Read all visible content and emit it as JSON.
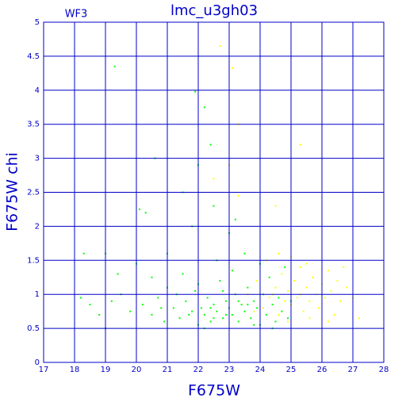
{
  "chart_data": {
    "type": "scatter",
    "title": "lmc_u3gh03",
    "annotation": "WF3",
    "x_label": "F675W",
    "y_label": "F675W chi",
    "xlim": [
      17,
      28
    ],
    "xticks": [
      17,
      18,
      19,
      20,
      21,
      22,
      23,
      24,
      25,
      26,
      27,
      28
    ],
    "ylim": [
      0,
      5
    ],
    "yticks": [
      0,
      0.5,
      1,
      1.5,
      2,
      2.5,
      3,
      3.5,
      4,
      4.5,
      5
    ],
    "grid": true,
    "grid_color": "#0000c8",
    "text_color": "#0000c8",
    "series": [
      {
        "color": "#00ff00",
        "x": [
          18.2,
          18.5,
          18.8,
          19.0,
          19.2,
          19.5,
          19.8,
          20.0,
          20.2,
          20.5,
          20.7,
          20.9,
          21.0,
          21.2,
          21.4,
          21.5,
          21.6,
          21.8,
          21.9,
          22.0,
          22.1,
          22.2,
          22.3,
          22.4,
          22.5,
          22.6,
          22.7,
          22.8,
          22.9,
          23.0,
          23.1,
          23.2,
          23.3,
          23.4,
          23.5,
          23.6,
          23.7,
          23.8,
          23.9,
          24.0,
          24.1,
          24.2,
          24.3,
          24.4,
          24.5,
          24.6,
          24.7,
          24.8,
          24.9,
          25.0,
          22.2,
          22.6,
          23.1,
          23.5,
          24.0,
          21.0,
          20.5,
          19.4,
          22.8,
          23.3,
          22.0,
          21.3,
          20.8,
          23.8,
          24.4,
          22.4,
          22.9,
          23.6,
          21.7,
          22.5,
          19.3,
          21.9,
          22.2,
          20.6,
          22.4,
          22.0,
          21.5,
          20.1,
          20.3,
          23.0,
          18.3,
          19.0,
          22.5,
          21.8,
          23.2
        ],
        "values": [
          0.95,
          0.85,
          0.7,
          0.5,
          0.9,
          1.0,
          0.75,
          1.45,
          0.85,
          0.7,
          0.95,
          0.6,
          1.1,
          0.8,
          0.65,
          1.3,
          0.9,
          0.75,
          1.05,
          0.55,
          0.8,
          0.7,
          0.95,
          0.6,
          0.85,
          0.75,
          1.2,
          0.65,
          0.9,
          0.8,
          0.7,
          1.0,
          0.6,
          0.85,
          0.75,
          1.1,
          0.65,
          0.9,
          0.8,
          0.55,
          1.0,
          0.7,
          1.25,
          0.85,
          0.6,
          0.95,
          0.75,
          1.4,
          0.65,
          0.9,
          0.5,
          1.5,
          1.35,
          1.6,
          1.45,
          1.6,
          1.25,
          1.3,
          1.05,
          0.9,
          1.15,
          1.0,
          0.8,
          0.55,
          0.5,
          0.8,
          0.7,
          0.85,
          0.7,
          0.65,
          4.35,
          3.98,
          3.75,
          3.0,
          3.2,
          2.9,
          2.5,
          2.25,
          2.2,
          1.9,
          1.6,
          1.6,
          2.3,
          2.0,
          2.1
        ]
      },
      {
        "color": "#ffff00",
        "x": [
          23.6,
          23.9,
          24.1,
          24.3,
          24.5,
          24.6,
          24.7,
          24.8,
          24.9,
          25.0,
          25.1,
          25.2,
          25.3,
          25.4,
          25.5,
          25.6,
          25.7,
          25.8,
          25.9,
          26.0,
          26.1,
          26.2,
          26.3,
          26.4,
          26.5,
          26.6,
          26.8,
          27.0,
          27.2,
          24.2,
          24.6,
          25.0,
          25.5,
          24.9,
          25.3,
          24.4,
          23.8,
          25.6,
          26.2,
          26.7,
          22.7,
          23.1,
          23.3,
          25.3,
          23.0,
          22.5,
          23.3,
          24.5
        ],
        "values": [
          1.0,
          1.2,
          0.8,
          0.95,
          1.1,
          0.7,
          1.3,
          0.9,
          1.05,
          0.85,
          1.2,
          0.95,
          1.4,
          0.75,
          1.1,
          0.9,
          1.25,
          1.0,
          0.8,
          1.15,
          0.95,
          1.35,
          1.05,
          0.7,
          1.2,
          0.9,
          1.1,
          0.95,
          0.65,
          1.5,
          1.6,
          1.55,
          1.45,
          0.6,
          1.0,
          1.0,
          0.75,
          0.65,
          0.6,
          1.4,
          4.65,
          4.33,
          3.5,
          3.2,
          2.9,
          2.7,
          2.45,
          2.3
        ]
      }
    ]
  }
}
